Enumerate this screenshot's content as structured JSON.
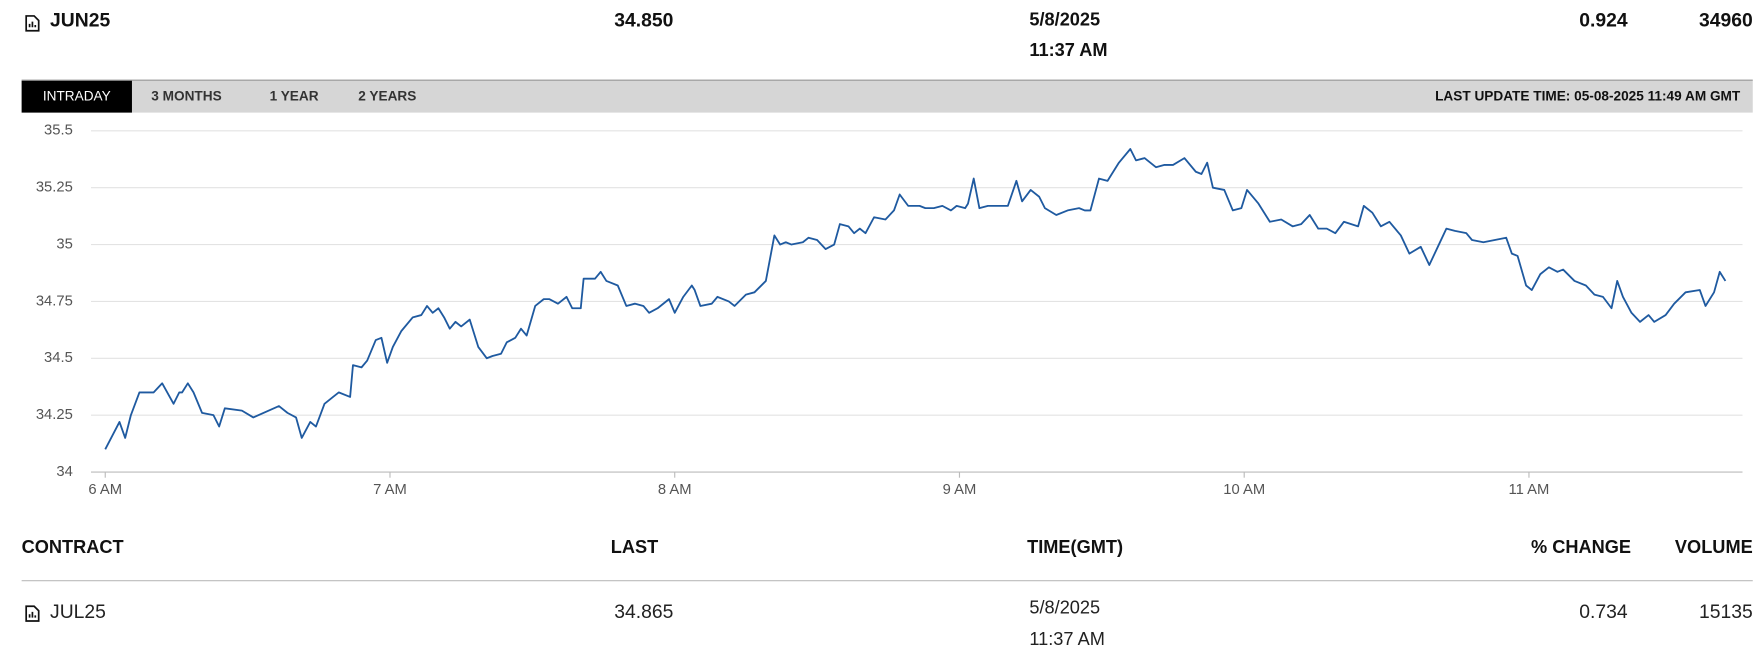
{
  "header": {
    "contract": "JUN25",
    "last": "34.850",
    "date": "5/8/2025",
    "time": "11:37 AM",
    "change": "0.924",
    "volume": "34960"
  },
  "tabs": [
    "INTRADAY",
    "3 MONTHS",
    "1 YEAR",
    "2 YEARS"
  ],
  "last_update": "LAST UPDATE TIME: 05-08-2025 11:49 AM GMT",
  "chart_data": {
    "type": "line",
    "x": [
      6.0,
      6.05,
      6.07,
      6.09,
      6.12,
      6.17,
      6.2,
      6.24,
      6.26,
      6.27,
      6.29,
      6.31,
      6.34,
      6.38,
      6.4,
      6.42,
      6.48,
      6.52,
      6.61,
      6.64,
      6.67,
      6.69,
      6.72,
      6.74,
      6.77,
      6.8,
      6.82,
      6.86,
      6.87,
      6.9,
      6.92,
      6.95,
      6.97,
      6.99,
      7.01,
      7.04,
      7.08,
      7.11,
      7.13,
      7.15,
      7.17,
      7.19,
      7.21,
      7.23,
      7.25,
      7.28,
      7.31,
      7.34,
      7.36,
      7.39,
      7.41,
      7.44,
      7.46,
      7.48,
      7.51,
      7.54,
      7.56,
      7.59,
      7.62,
      7.64,
      7.67,
      7.68,
      7.72,
      7.74,
      7.76,
      7.8,
      7.83,
      7.86,
      7.89,
      7.91,
      7.94,
      7.98,
      8.0,
      8.03,
      8.06,
      8.07,
      8.09,
      8.13,
      8.15,
      8.19,
      8.21,
      8.25,
      8.28,
      8.32,
      8.35,
      8.37,
      8.39,
      8.41,
      8.45,
      8.47,
      8.5,
      8.53,
      8.56,
      8.58,
      8.61,
      8.63,
      8.65,
      8.67,
      8.7,
      8.74,
      8.77,
      8.79,
      8.82,
      8.86,
      8.88,
      8.91,
      8.94,
      8.97,
      8.99,
      9.02,
      9.03,
      9.05,
      9.07,
      9.1,
      9.13,
      9.17,
      9.2,
      9.22,
      9.25,
      9.28,
      9.3,
      9.34,
      9.38,
      9.42,
      9.44,
      9.46,
      9.49,
      9.52,
      9.56,
      9.6,
      9.62,
      9.65,
      9.69,
      9.72,
      9.75,
      9.79,
      9.83,
      9.85,
      9.87,
      9.89,
      9.93,
      9.96,
      9.99,
      10.01,
      10.05,
      10.09,
      10.13,
      10.17,
      10.2,
      10.23,
      10.26,
      10.29,
      10.32,
      10.35,
      10.4,
      10.42,
      10.45,
      10.48,
      10.51,
      10.55,
      10.58,
      10.62,
      10.65,
      10.68,
      10.71,
      10.74,
      10.78,
      10.8,
      10.84,
      10.88,
      10.92,
      10.94,
      10.96,
      10.99,
      11.01,
      11.04,
      11.07,
      11.1,
      11.12,
      11.16,
      11.2,
      11.23,
      11.26,
      11.29,
      11.31,
      11.33,
      11.36,
      11.39,
      11.42,
      11.44,
      11.48,
      11.51,
      11.55,
      11.6,
      11.62,
      11.65,
      11.67,
      11.69
    ],
    "series": [
      {
        "color": "#1f5aa0",
        "values": [
          34.1,
          34.22,
          34.15,
          34.25,
          34.35,
          34.35,
          34.39,
          34.3,
          34.35,
          34.35,
          34.39,
          34.35,
          34.26,
          34.25,
          34.2,
          34.28,
          34.27,
          34.24,
          34.29,
          34.26,
          34.24,
          34.15,
          34.22,
          34.2,
          34.3,
          34.33,
          34.35,
          34.33,
          34.47,
          34.46,
          34.49,
          34.58,
          34.59,
          34.48,
          34.55,
          34.62,
          34.68,
          34.69,
          34.73,
          34.7,
          34.72,
          34.68,
          34.63,
          34.66,
          34.64,
          34.67,
          34.55,
          34.5,
          34.51,
          34.52,
          34.57,
          34.59,
          34.63,
          34.6,
          34.73,
          34.76,
          34.76,
          34.74,
          34.77,
          34.72,
          34.72,
          34.85,
          34.85,
          34.88,
          34.84,
          34.82,
          34.73,
          34.74,
          34.73,
          34.7,
          34.72,
          34.76,
          34.7,
          34.77,
          34.82,
          34.8,
          34.73,
          34.74,
          34.77,
          34.75,
          34.73,
          34.78,
          34.79,
          34.84,
          35.04,
          35.0,
          35.01,
          35.0,
          35.01,
          35.03,
          35.02,
          34.98,
          35.0,
          35.09,
          35.08,
          35.05,
          35.07,
          35.05,
          35.12,
          35.11,
          35.15,
          35.22,
          35.17,
          35.17,
          35.16,
          35.16,
          35.17,
          35.15,
          35.17,
          35.16,
          35.18,
          35.29,
          35.16,
          35.17,
          35.17,
          35.17,
          35.28,
          35.19,
          35.24,
          35.21,
          35.16,
          35.13,
          35.15,
          35.16,
          35.15,
          35.15,
          35.29,
          35.28,
          35.36,
          35.42,
          35.37,
          35.38,
          35.34,
          35.35,
          35.35,
          35.38,
          35.32,
          35.31,
          35.36,
          35.25,
          35.24,
          35.15,
          35.16,
          35.24,
          35.18,
          35.1,
          35.11,
          35.08,
          35.09,
          35.13,
          35.07,
          35.07,
          35.05,
          35.1,
          35.08,
          35.17,
          35.14,
          35.08,
          35.1,
          35.04,
          34.96,
          34.99,
          34.91,
          34.99,
          35.07,
          35.06,
          35.05,
          35.02,
          35.01,
          35.02,
          35.03,
          34.96,
          34.95,
          34.82,
          34.8,
          34.87,
          34.9,
          34.88,
          34.89,
          34.84,
          34.82,
          34.78,
          34.77,
          34.72,
          34.84,
          34.77,
          34.7,
          34.66,
          34.69,
          34.66,
          34.69,
          34.74,
          34.79,
          34.8,
          34.73,
          34.79,
          34.88,
          34.84
        ]
      }
    ],
    "xlim": [
      5.95,
      11.75
    ],
    "xticks": [
      {
        "value": 6,
        "label": "6 AM"
      },
      {
        "value": 7,
        "label": "7 AM"
      },
      {
        "value": 8,
        "label": "8 AM"
      },
      {
        "value": 9,
        "label": "9 AM"
      },
      {
        "value": 10,
        "label": "10 AM"
      },
      {
        "value": 11,
        "label": "11 AM"
      }
    ],
    "ylim": [
      34,
      35.5
    ],
    "yticks": [
      34,
      34.25,
      34.5,
      34.75,
      35,
      35.25,
      35.5
    ],
    "grid": true
  },
  "table": {
    "columns": [
      "CONTRACT",
      "LAST",
      "TIME(GMT)",
      "% CHANGE",
      "VOLUME"
    ],
    "rows": [
      [
        "JUL25",
        "34.865",
        "5/8/2025",
        "11:37 AM",
        "0.734",
        "15135"
      ]
    ]
  }
}
